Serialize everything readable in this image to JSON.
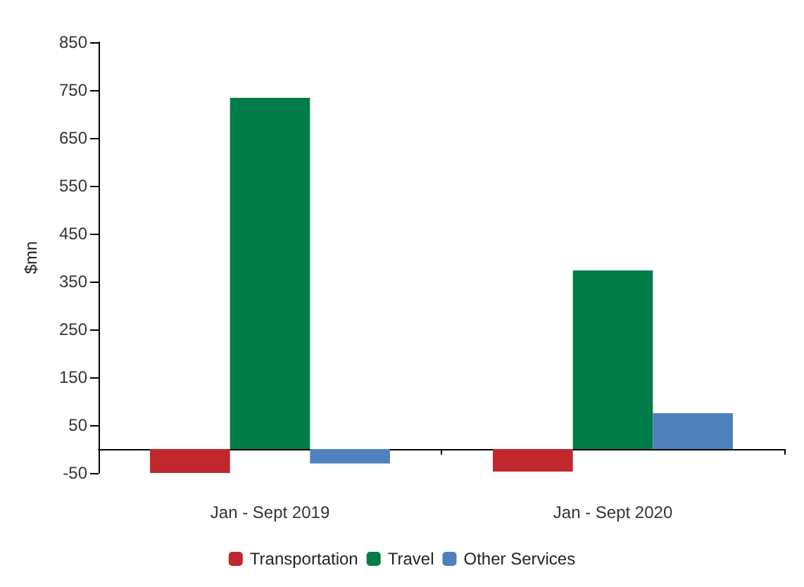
{
  "chart_data": {
    "type": "bar",
    "ylabel": "$mn",
    "categories": [
      "Jan - Sept 2019",
      "Jan - Sept 2020"
    ],
    "series": [
      {
        "name": "Transportation",
        "color": "#c0282d",
        "values": [
          -50,
          -47
        ]
      },
      {
        "name": "Travel",
        "color": "#027c48",
        "values": [
          734,
          373
        ]
      },
      {
        "name": "Other Services",
        "color": "#4f81bd",
        "values": [
          -30,
          75
        ]
      }
    ],
    "ylim": [
      -50,
      850
    ],
    "yticks": [
      -50,
      50,
      150,
      250,
      350,
      450,
      550,
      650,
      750,
      850
    ],
    "grid": false,
    "legend": "bottom"
  }
}
